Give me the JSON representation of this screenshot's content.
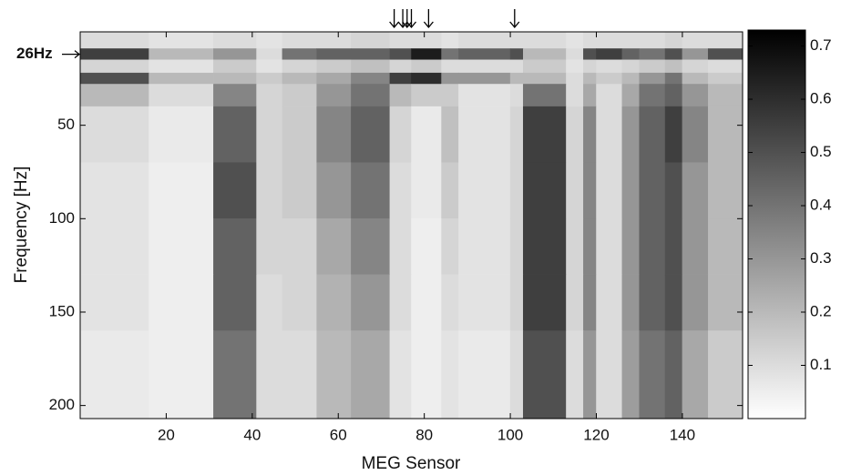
{
  "chart_data": {
    "type": "heatmap",
    "xlabel": "MEG Sensor",
    "ylabel": "Frequency [Hz]",
    "x_edges": [
      0,
      16,
      31,
      41,
      47,
      55,
      63,
      72,
      77,
      84,
      88,
      100,
      103,
      113,
      117,
      120,
      126,
      130,
      136,
      140,
      146,
      154
    ],
    "y_edges": [
      0,
      9,
      15,
      22,
      28,
      40,
      70,
      100,
      130,
      160,
      207
    ],
    "values": [
      [
        0.1,
        0.08,
        0.1,
        0.08,
        0.1,
        0.1,
        0.12,
        0.1,
        0.1,
        0.08,
        0.1,
        0.1,
        0.1,
        0.08,
        0.1,
        0.1,
        0.1,
        0.1,
        0.12,
        0.1,
        0.1
      ],
      [
        0.55,
        0.2,
        0.3,
        0.1,
        0.4,
        0.45,
        0.45,
        0.5,
        0.65,
        0.4,
        0.45,
        0.5,
        0.2,
        0.1,
        0.5,
        0.55,
        0.45,
        0.4,
        0.5,
        0.3,
        0.5
      ],
      [
        0.12,
        0.08,
        0.15,
        0.08,
        0.12,
        0.15,
        0.18,
        0.12,
        0.15,
        0.1,
        0.1,
        0.1,
        0.15,
        0.08,
        0.12,
        0.1,
        0.12,
        0.15,
        0.18,
        0.12,
        0.1
      ],
      [
        0.5,
        0.2,
        0.2,
        0.15,
        0.2,
        0.25,
        0.35,
        0.55,
        0.6,
        0.3,
        0.3,
        0.2,
        0.2,
        0.1,
        0.2,
        0.15,
        0.2,
        0.3,
        0.4,
        0.2,
        0.15
      ],
      [
        0.2,
        0.1,
        0.35,
        0.12,
        0.15,
        0.3,
        0.4,
        0.2,
        0.15,
        0.15,
        0.08,
        0.1,
        0.4,
        0.1,
        0.25,
        0.1,
        0.25,
        0.4,
        0.45,
        0.3,
        0.2
      ],
      [
        0.1,
        0.06,
        0.45,
        0.12,
        0.15,
        0.35,
        0.45,
        0.12,
        0.06,
        0.18,
        0.08,
        0.12,
        0.55,
        0.12,
        0.35,
        0.1,
        0.3,
        0.45,
        0.55,
        0.35,
        0.2
      ],
      [
        0.08,
        0.05,
        0.5,
        0.12,
        0.15,
        0.3,
        0.4,
        0.1,
        0.06,
        0.15,
        0.08,
        0.12,
        0.55,
        0.12,
        0.35,
        0.1,
        0.3,
        0.45,
        0.5,
        0.3,
        0.2
      ],
      [
        0.08,
        0.05,
        0.45,
        0.12,
        0.12,
        0.25,
        0.35,
        0.1,
        0.05,
        0.12,
        0.08,
        0.12,
        0.55,
        0.12,
        0.35,
        0.1,
        0.3,
        0.45,
        0.5,
        0.3,
        0.2
      ],
      [
        0.08,
        0.05,
        0.45,
        0.1,
        0.12,
        0.22,
        0.3,
        0.1,
        0.05,
        0.1,
        0.08,
        0.12,
        0.55,
        0.12,
        0.35,
        0.1,
        0.3,
        0.45,
        0.5,
        0.3,
        0.2
      ],
      [
        0.06,
        0.05,
        0.4,
        0.1,
        0.1,
        0.2,
        0.25,
        0.08,
        0.05,
        0.08,
        0.06,
        0.1,
        0.5,
        0.1,
        0.3,
        0.1,
        0.28,
        0.4,
        0.45,
        0.25,
        0.15
      ]
    ],
    "xlim": [
      0,
      154
    ],
    "ylim": [
      0,
      207
    ],
    "y_reversed": true,
    "xticks": [
      20,
      40,
      60,
      80,
      100,
      120,
      140
    ],
    "yticks": [
      50,
      100,
      150,
      200
    ],
    "clim": [
      0,
      0.73
    ],
    "cticks": [
      0.1,
      0.2,
      0.3,
      0.4,
      0.5,
      0.6,
      0.7
    ],
    "colormap": [
      "#ffffff",
      "#000000"
    ],
    "annotation": {
      "text": "26Hz",
      "y": 12
    },
    "arrows": [
      73,
      75,
      76,
      77,
      81,
      101
    ]
  }
}
